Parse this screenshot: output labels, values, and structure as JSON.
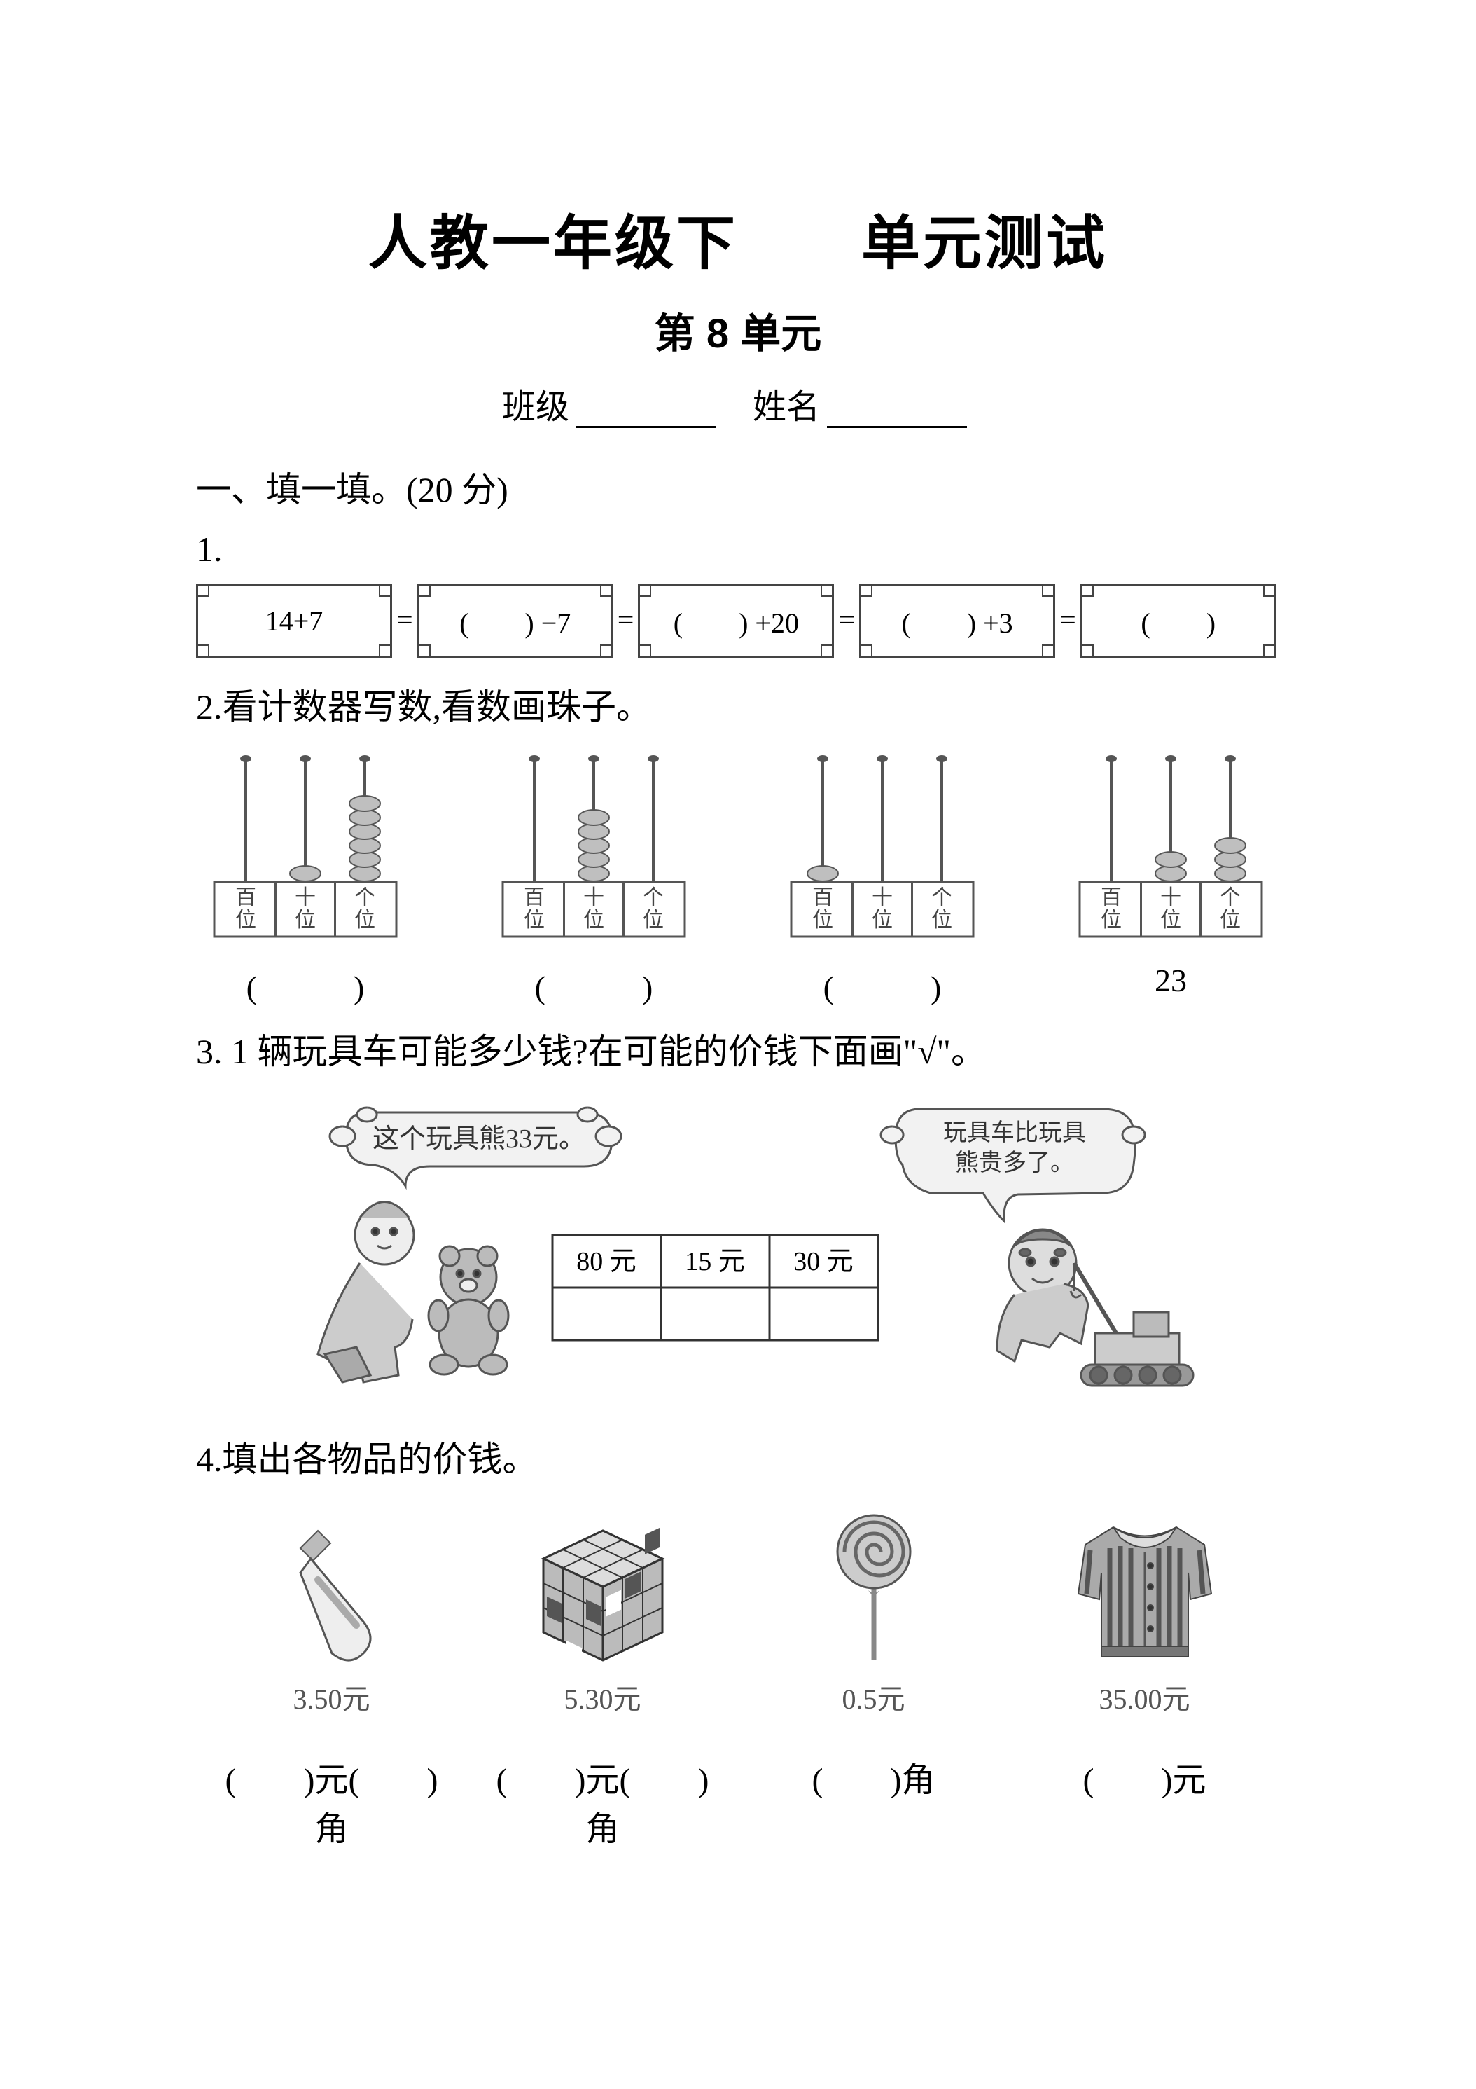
{
  "title_main": "人教一年级下　　单元测试",
  "title_sub": "第 8 单元",
  "info": {
    "class_label": "班级",
    "name_label": "姓名"
  },
  "section1": "一、填一填。(20 分)",
  "q1": {
    "num": "1.",
    "boxes": [
      "14+7",
      "(　　) −7",
      "(　　) +20",
      "(　　) +3",
      "(　　)"
    ],
    "eq": "="
  },
  "q2": {
    "num": "2.看计数器写数,看数画珠子。",
    "col_labels": [
      "百位",
      "十位",
      "个位"
    ],
    "abaci": [
      {
        "beads": [
          0,
          1,
          6
        ],
        "answer": "(　　　)"
      },
      {
        "beads": [
          0,
          5,
          0
        ],
        "answer": "(　　　)"
      },
      {
        "beads": [
          1,
          0,
          0
        ],
        "answer": "(　　　)"
      },
      {
        "beads": [
          0,
          2,
          3
        ],
        "answer": "23"
      }
    ],
    "colors": {
      "bead_fill": "#bfbfbf",
      "bead_stroke": "#555",
      "frame_stroke": "#555"
    }
  },
  "q3": {
    "num": "3. 1 辆玩具车可能多少钱?在可能的价钱下面画\"√\"。",
    "speech_left": "这个玩具熊33元。",
    "speech_right": "玩具车比玩具熊贵多了。",
    "prices": [
      "80 元",
      "15 元",
      "30 元"
    ],
    "colors": {
      "bubble_fill": "#f2f2f2",
      "table_stroke": "#333",
      "figure_fill": "#cccccc"
    }
  },
  "q4": {
    "num": "4.填出各物品的价钱。",
    "items": [
      {
        "name": "toothpaste",
        "price": "3.50元",
        "answer": "(　　)元(　　)角"
      },
      {
        "name": "rubiks-cube",
        "price": "5.30元",
        "answer": "(　　)元(　　)角"
      },
      {
        "name": "lollipop",
        "price": "0.5元",
        "answer": "(　　)角"
      },
      {
        "name": "cardigan",
        "price": "35.00元",
        "answer": "(　　)元"
      }
    ],
    "colors": {
      "item_gray": "#999999",
      "item_dark": "#555555",
      "item_light": "#dddddd"
    }
  }
}
